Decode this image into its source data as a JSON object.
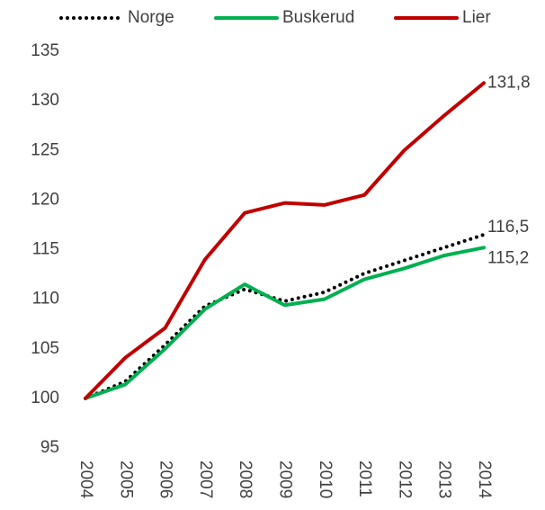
{
  "chart_data": {
    "type": "line",
    "categories": [
      "2004",
      "2005",
      "2006",
      "2007",
      "2008",
      "2009",
      "2010",
      "2011",
      "2012",
      "2013",
      "2014"
    ],
    "series": [
      {
        "name": "Norge",
        "color": "#000000",
        "dash": "dotted",
        "values": [
          100,
          101.7,
          105.4,
          109.3,
          111,
          109.8,
          110.7,
          112.6,
          113.9,
          115.2,
          116.5
        ],
        "value_labels": [
          null,
          null,
          null,
          null,
          null,
          null,
          null,
          null,
          null,
          null,
          "116,5"
        ]
      },
      {
        "name": "Buskerud",
        "color": "#00b050",
        "values": [
          100,
          101.4,
          105,
          109,
          111.5,
          109.4,
          110,
          112,
          113.1,
          114.4,
          115.2
        ],
        "value_labels": [
          null,
          null,
          null,
          null,
          null,
          null,
          null,
          null,
          null,
          null,
          "115,2"
        ]
      },
      {
        "name": "Lier",
        "color": "#c00000",
        "values": [
          100,
          104.1,
          107.1,
          114,
          118.7,
          119.7,
          119.5,
          120.5,
          125,
          128.5,
          131.8
        ],
        "value_labels": [
          null,
          null,
          null,
          null,
          null,
          null,
          null,
          null,
          null,
          null,
          "131,8"
        ]
      }
    ],
    "ylim": [
      95,
      135
    ],
    "yticks": [
      95,
      100,
      105,
      110,
      115,
      120,
      125,
      130,
      135
    ],
    "grid": false,
    "legend": "top"
  }
}
